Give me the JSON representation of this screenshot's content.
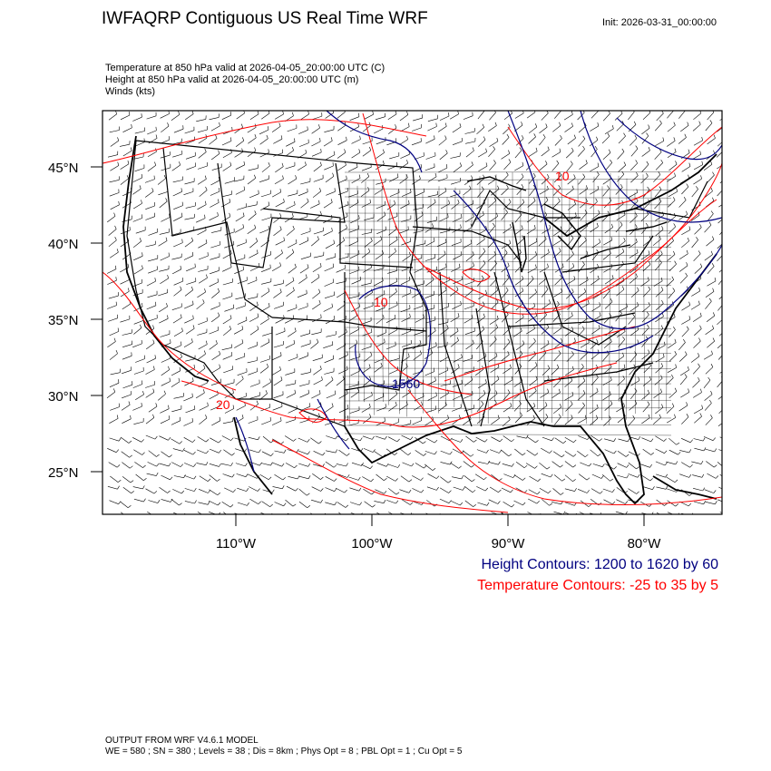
{
  "header": {
    "title": "IWFAQRP Contiguous US Real Time WRF",
    "init": "Init: 2026-03-31_00:00:00"
  },
  "fields": {
    "temperature": "Temperature at 850 hPa valid at 2026-04-05_20:00:00 UTC   (C)",
    "height": "Height at 850 hPa valid at 2026-04-05_20:00:00 UTC   (m)",
    "winds": "Winds   (kts)"
  },
  "map": {
    "lat_labels": [
      "45°N",
      "40°N",
      "35°N",
      "30°N",
      "25°N"
    ],
    "lon_labels": [
      "110°W",
      "100°W",
      "90°W",
      "80°W"
    ],
    "contour_labels": {
      "temp_10_north": "10",
      "temp_10_central": "10",
      "temp_20_southwest": "20",
      "height_1560": "1560"
    },
    "colors": {
      "height": "#000080",
      "temperature": "#ff0000",
      "borders": "#000000"
    }
  },
  "legend": {
    "height": "Height Contours: 1200 to 1620 by 60",
    "temperature": "Temperature Contours: -25 to 35 by 5"
  },
  "footer": {
    "line1": "OUTPUT FROM WRF V4.6.1 MODEL",
    "line2": "WE = 580 ; SN = 380 ; Levels = 38 ; Dis = 8km ; Phys Opt = 8 ; PBL Opt = 1 ; Cu Opt = 5"
  }
}
